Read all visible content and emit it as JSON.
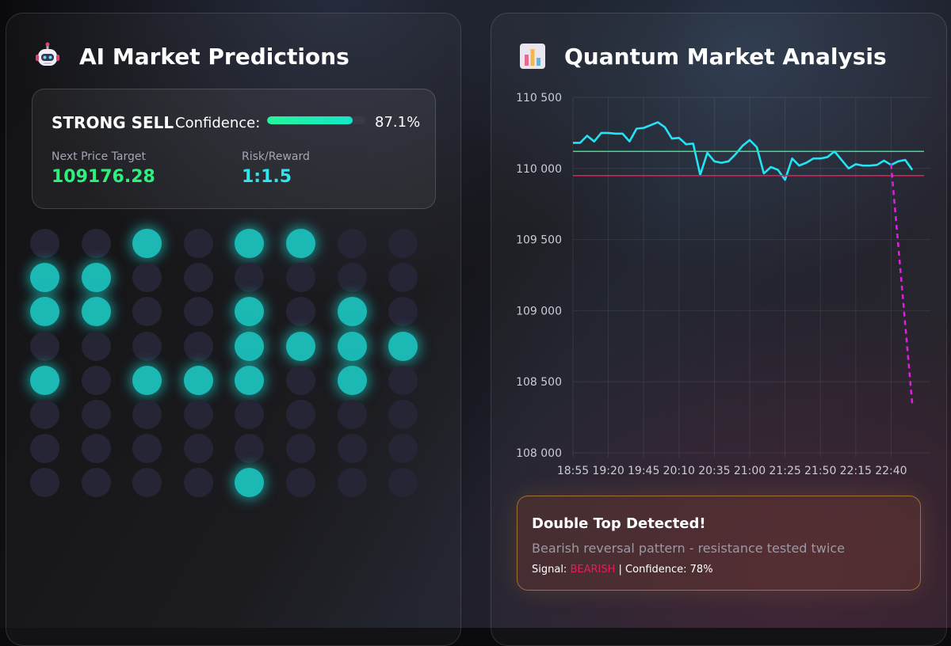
{
  "left_panel": {
    "title": "AI Market Predictions",
    "icon": "robot-icon",
    "prediction": {
      "signal": "STRONG SELL",
      "confidence_label": "Confidence:",
      "confidence_value": "87.1%",
      "confidence_fraction": 0.871,
      "target_label": "Next Price Target",
      "target_value": "109176.28",
      "risk_label": "Risk/Reward",
      "risk_value": "1:1.5"
    },
    "neural_grid": {
      "rows": [
        [
          0,
          0,
          1,
          0,
          1,
          1,
          0,
          0
        ],
        [
          1,
          1,
          0,
          0,
          0,
          0,
          0,
          0
        ],
        [
          1,
          1,
          0,
          0,
          1,
          0,
          1,
          0
        ],
        [
          0,
          0,
          0,
          0,
          1,
          1,
          1,
          1
        ],
        [
          1,
          0,
          1,
          1,
          1,
          0,
          1,
          0
        ],
        [
          0,
          0,
          0,
          0,
          0,
          0,
          0,
          0
        ],
        [
          0,
          0,
          0,
          0,
          0,
          0,
          0,
          0
        ],
        [
          0,
          0,
          0,
          0,
          1,
          0,
          0,
          0
        ]
      ]
    }
  },
  "right_panel": {
    "title": "Quantum Market Analysis",
    "icon": "bar-chart-icon",
    "pattern_alert": {
      "title": "Double Top Detected!",
      "description": "Bearish reversal pattern - resistance tested twice",
      "signal_prefix": "Signal:",
      "signal_value": "BEARISH",
      "confidence_text": "| Confidence: 78%"
    }
  },
  "chart_data": {
    "type": "line",
    "title": "",
    "xlabel": "",
    "ylabel": "",
    "ylim": [
      108000,
      110500
    ],
    "y_ticks": [
      "108 000",
      "108 500",
      "109 000",
      "109 500",
      "110 000",
      "110 500"
    ],
    "y_tick_values": [
      108000,
      108500,
      109000,
      109500,
      110000,
      110500
    ],
    "x_ticks": [
      "18:55",
      "19:20",
      "19:45",
      "20:10",
      "20:35",
      "21:00",
      "21:25",
      "21:50",
      "22:15",
      "22:40"
    ],
    "grid": true,
    "series": [
      {
        "color": "#22e4f5",
        "x": [
          "18:55",
          "19:00",
          "19:05",
          "19:10",
          "19:15",
          "19:20",
          "19:25",
          "19:30",
          "19:35",
          "19:40",
          "19:45",
          "19:50",
          "19:55",
          "20:00",
          "20:05",
          "20:10",
          "20:15",
          "20:20",
          "20:25",
          "20:30",
          "20:35",
          "20:40",
          "20:45",
          "20:50",
          "20:55",
          "21:00",
          "21:05",
          "21:10",
          "21:15",
          "21:20",
          "21:25",
          "21:30",
          "21:35",
          "21:40",
          "21:45",
          "21:50",
          "21:55",
          "22:00",
          "22:05",
          "22:10",
          "22:15",
          "22:20",
          "22:25",
          "22:30",
          "22:35",
          "22:40",
          "22:45",
          "22:50",
          "22:55"
        ],
        "values": [
          110180,
          110180,
          110230,
          110190,
          110250,
          110250,
          110245,
          110245,
          110190,
          110280,
          110285,
          110305,
          110325,
          110290,
          110210,
          110215,
          110170,
          110175,
          109955,
          110110,
          110050,
          110040,
          110050,
          110100,
          110160,
          110200,
          110150,
          109965,
          110010,
          109990,
          109920,
          110070,
          110020,
          110040,
          110070,
          110070,
          110080,
          110120,
          110060,
          110000,
          110030,
          110020,
          110020,
          110025,
          110055,
          110025,
          110050,
          110060,
          109990
        ]
      },
      {
        "name": "",
        "kind": "resistance",
        "color": "#2ee68a",
        "values": [
          110120
        ]
      },
      {
        "name": "",
        "kind": "support",
        "color": "#e8185a",
        "values": [
          109950
        ]
      },
      {
        "name": "",
        "kind": "forecast",
        "color": "#e21ee0",
        "dashed": true,
        "x": [
          "22:40",
          "22:55"
        ],
        "values": [
          110030,
          108340
        ]
      }
    ]
  },
  "colors": {
    "accent_green": "#2ef07e",
    "accent_cyan": "#2ee6f0",
    "bearish": "#e51e5a",
    "grid_on": "#1bb8b4"
  }
}
